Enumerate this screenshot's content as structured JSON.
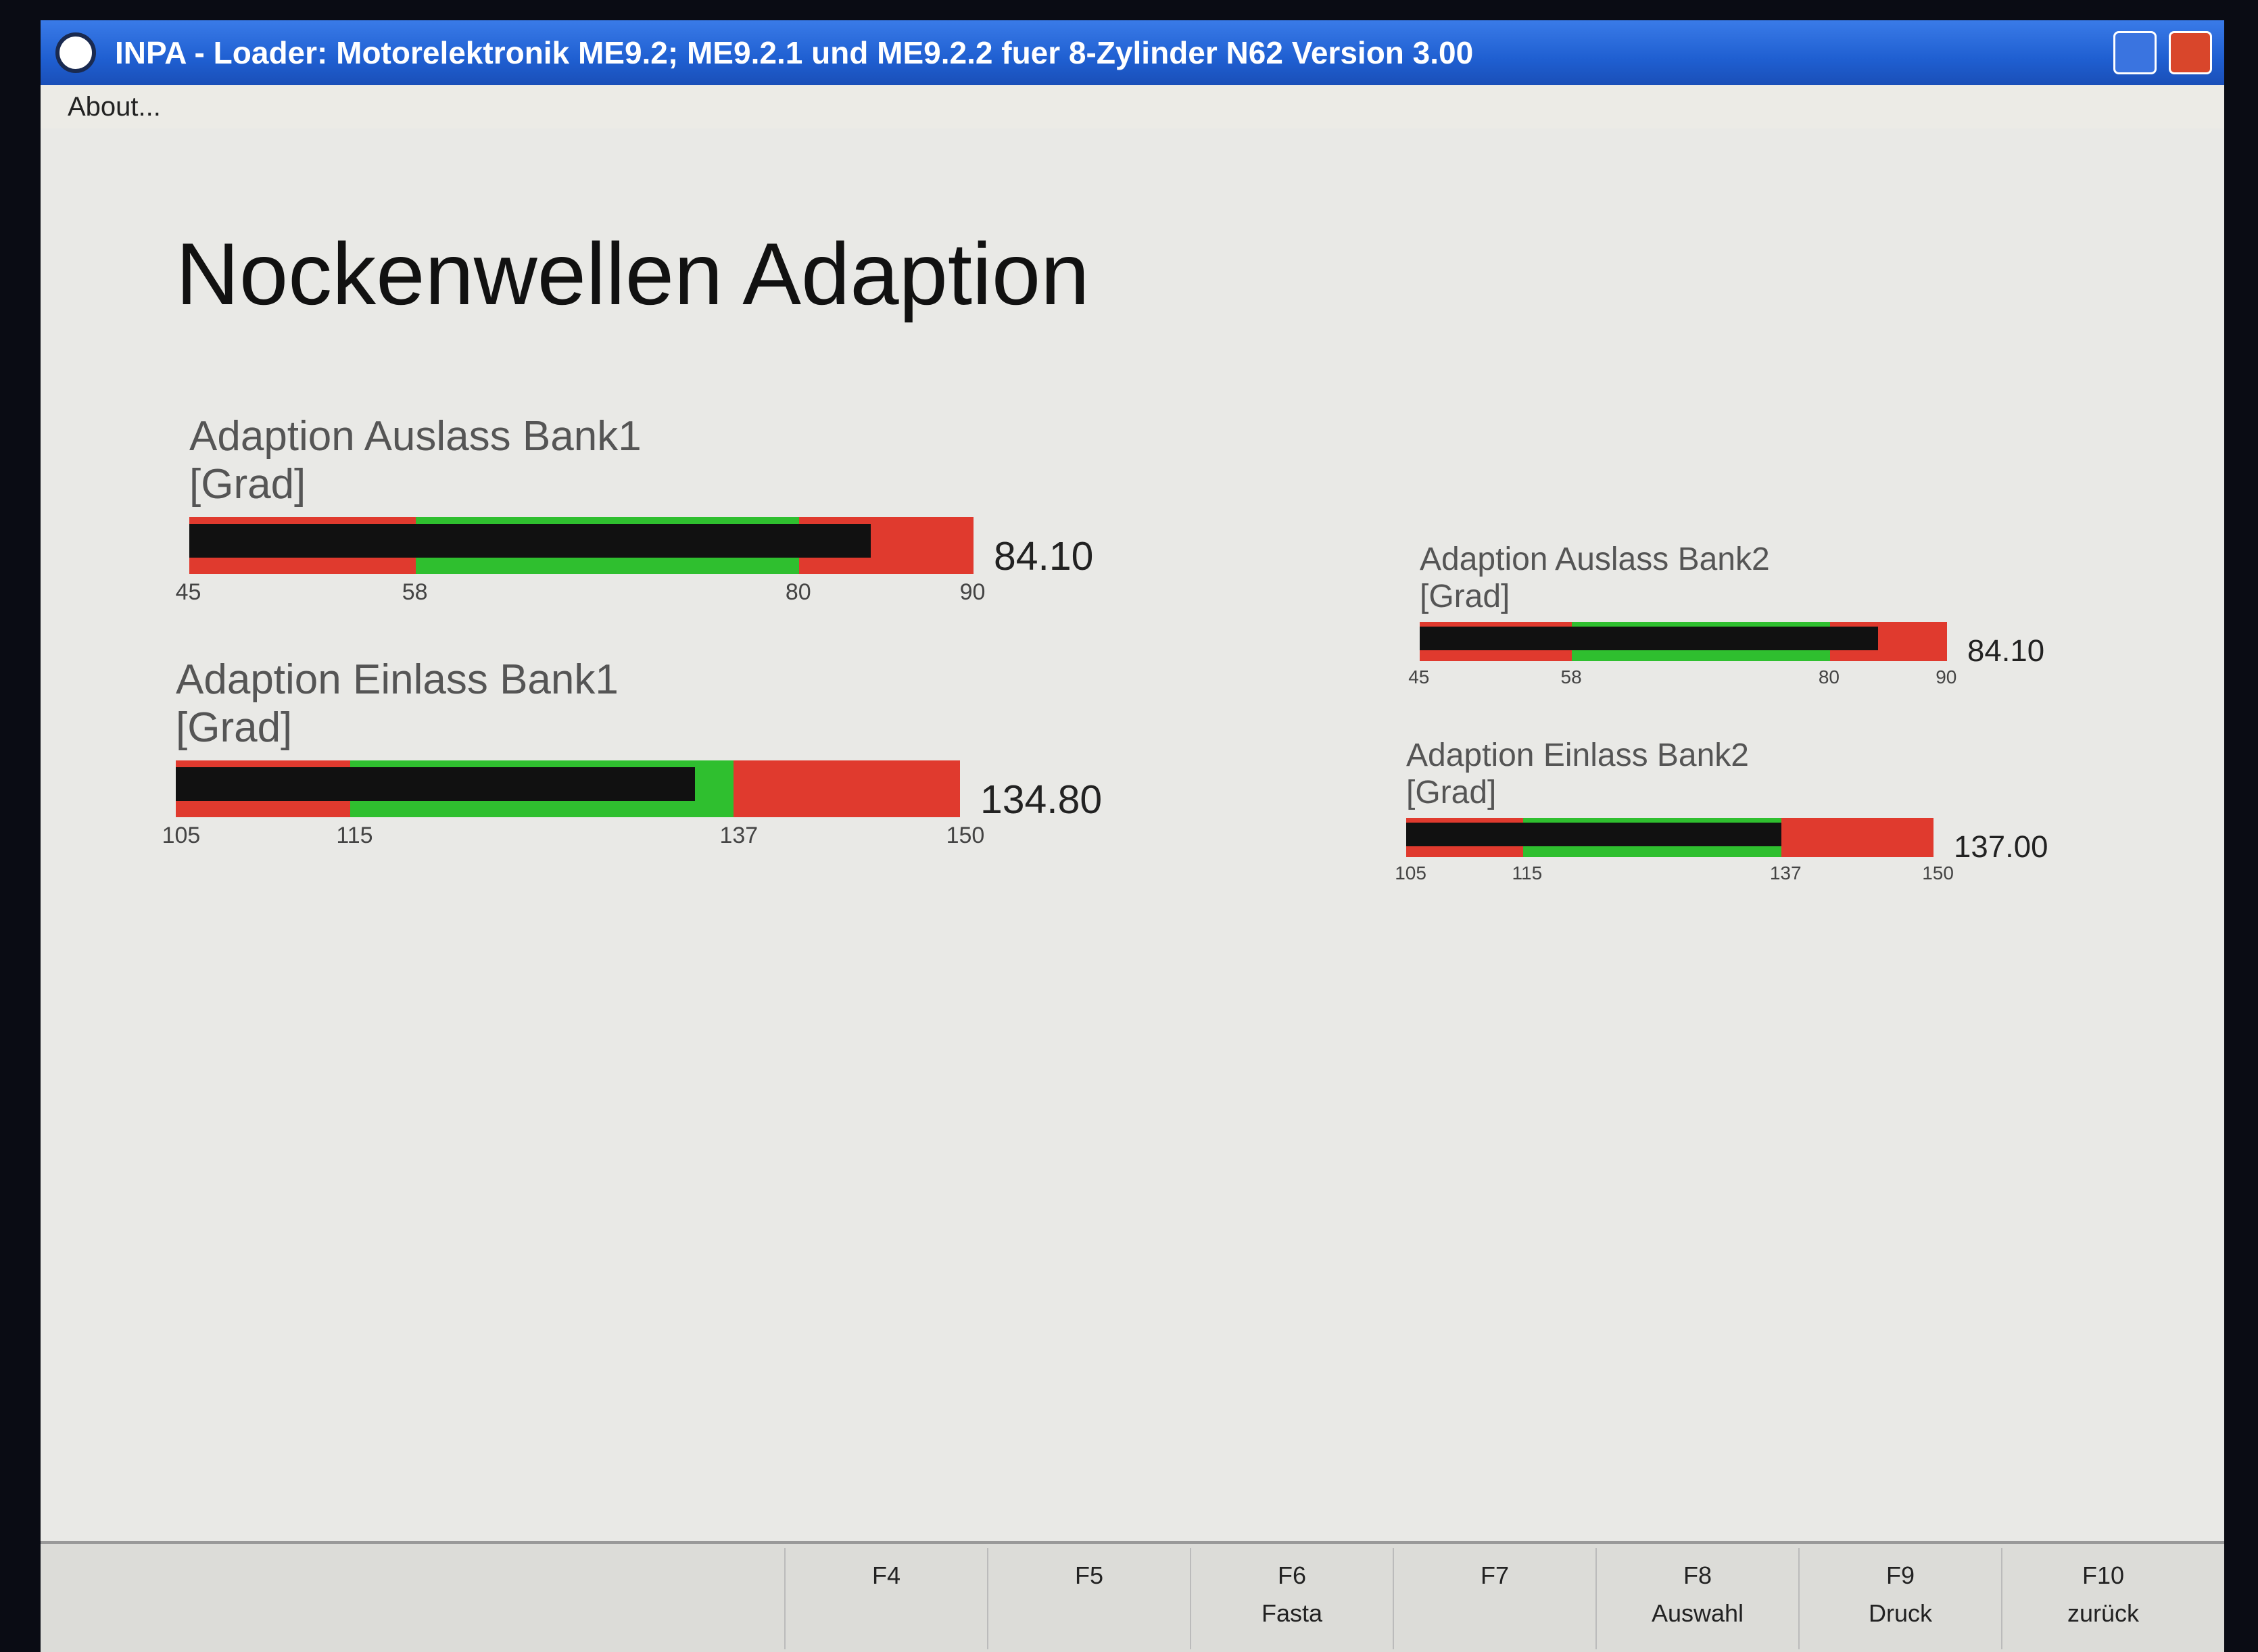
{
  "window": {
    "title": "INPA - Loader:  Motorelektronik ME9.2; ME9.2.1 und ME9.2.2 fuer 8-Zylinder N62 Version 3.00",
    "menu": [
      "About..."
    ]
  },
  "screen": {
    "title": "Nockenwellen Adaption",
    "gauges": [
      {
        "label": "Adaption Auslass Bank1",
        "unit": "[Grad]",
        "min": 45,
        "low": 58,
        "high": 80,
        "max": 90,
        "value": 84.1,
        "value_label": "84.10"
      },
      {
        "label": "Adaption Einlass Bank1",
        "unit": "[Grad]",
        "min": 105,
        "low": 115,
        "high": 137,
        "max": 150,
        "value": 134.8,
        "value_label": "134.80"
      },
      {
        "label": "Adaption Auslass Bank2",
        "unit": "[Grad]",
        "min": 45,
        "low": 58,
        "high": 80,
        "max": 90,
        "value": 84.1,
        "value_label": "84.10"
      },
      {
        "label": "Adaption Einlass Bank2",
        "unit": "[Grad]",
        "min": 105,
        "low": 115,
        "high": 137,
        "max": 150,
        "value": 137,
        "value_label": "137.00"
      }
    ]
  },
  "function_keys": [
    {
      "key": "F4"
    },
    {
      "key": "F5"
    },
    {
      "key": "F6",
      "text": "Fasta"
    },
    {
      "key": "F7"
    },
    {
      "key": "F8",
      "text": "Auswahl"
    },
    {
      "key": "F9",
      "text": "Druck"
    },
    {
      "key": "F10",
      "text": "zurück"
    }
  ]
}
